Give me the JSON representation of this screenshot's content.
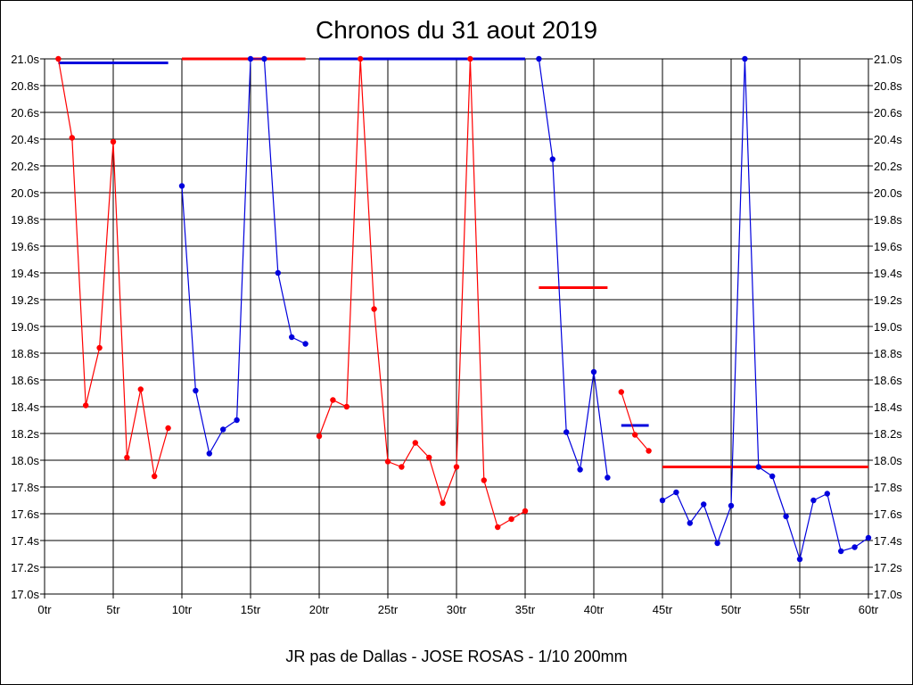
{
  "chart_data": {
    "type": "line",
    "title": "Chronos du 31 aout 2019",
    "subtitle": "JR pas de Dallas - JOSE ROSAS - 1/10 200mm",
    "xlim": [
      0,
      60
    ],
    "ylim": [
      17.0,
      21.0
    ],
    "x_ticks": [
      0,
      5,
      10,
      15,
      20,
      25,
      30,
      35,
      40,
      45,
      50,
      55,
      60
    ],
    "x_tick_labels": [
      "0tr",
      "5tr",
      "10tr",
      "15tr",
      "20tr",
      "25tr",
      "30tr",
      "35tr",
      "40tr",
      "45tr",
      "50tr",
      "55tr",
      "60tr"
    ],
    "y_ticks": [
      17.0,
      17.2,
      17.4,
      17.6,
      17.8,
      18.0,
      18.2,
      18.4,
      18.6,
      18.8,
      19.0,
      19.2,
      19.4,
      19.6,
      19.8,
      20.0,
      20.2,
      20.4,
      20.6,
      20.8,
      21.0
    ],
    "y_tick_labels": [
      "17.0s",
      "17.2s",
      "17.4s",
      "17.6s",
      "17.8s",
      "18.0s",
      "18.2s",
      "18.4s",
      "18.6s",
      "18.8s",
      "19.0s",
      "19.2s",
      "19.4s",
      "19.6s",
      "19.8s",
      "20.0s",
      "20.2s",
      "20.4s",
      "20.6s",
      "20.8s",
      "21.0s"
    ],
    "grid": true,
    "y_axis_labels_both_sides": true,
    "colors": {
      "red": "#ff0000",
      "blue": "#0000dd"
    },
    "series": [
      {
        "color": "red",
        "x": [
          1,
          2,
          3,
          4,
          5,
          6,
          7,
          8,
          9
        ],
        "y": [
          21.0,
          20.41,
          18.41,
          18.84,
          20.38,
          18.02,
          18.53,
          17.88,
          18.24
        ]
      },
      {
        "color": "blue",
        "x": [
          10,
          11,
          12,
          13,
          14,
          15,
          16,
          17,
          18,
          19
        ],
        "y": [
          20.05,
          18.52,
          18.05,
          18.23,
          18.3,
          21.0,
          21.0,
          19.4,
          18.92,
          18.87
        ]
      },
      {
        "color": "red",
        "x": [
          20,
          21,
          22,
          23,
          24,
          25,
          26,
          27,
          28,
          29,
          30,
          31,
          32,
          33,
          34,
          35
        ],
        "y": [
          18.18,
          18.45,
          18.4,
          21.0,
          19.13,
          17.99,
          17.95,
          18.13,
          18.02,
          17.68,
          17.95,
          21.0,
          17.85,
          17.5,
          17.56,
          17.62
        ]
      },
      {
        "color": "blue",
        "x": [
          36,
          37,
          38,
          39,
          40,
          41
        ],
        "y": [
          21.0,
          20.25,
          18.21,
          17.93,
          18.66,
          17.87
        ]
      },
      {
        "color": "red",
        "x": [
          42,
          43,
          44
        ],
        "y": [
          18.51,
          18.19,
          18.07
        ]
      },
      {
        "color": "blue",
        "x": [
          45,
          46,
          47,
          48,
          49,
          50,
          51,
          52,
          53,
          54,
          55,
          56,
          57,
          58,
          59,
          60
        ],
        "y": [
          17.7,
          17.76,
          17.53,
          17.67,
          17.38,
          17.66,
          21.0,
          17.95,
          17.88,
          17.58,
          17.26,
          17.7,
          17.75,
          17.32,
          17.35,
          17.42
        ]
      }
    ],
    "average_lines": [
      {
        "color": "blue",
        "x_start": 1,
        "x_end": 9,
        "value": 20.97
      },
      {
        "color": "red",
        "x_start": 10,
        "x_end": 19,
        "value": 21.0
      },
      {
        "color": "blue",
        "x_start": 20,
        "x_end": 35,
        "value": 21.0
      },
      {
        "color": "red",
        "x_start": 36,
        "x_end": 41,
        "value": 19.29
      },
      {
        "color": "blue",
        "x_start": 42,
        "x_end": 44,
        "value": 18.26
      },
      {
        "color": "red",
        "x_start": 45,
        "x_end": 60,
        "value": 17.95
      }
    ]
  }
}
